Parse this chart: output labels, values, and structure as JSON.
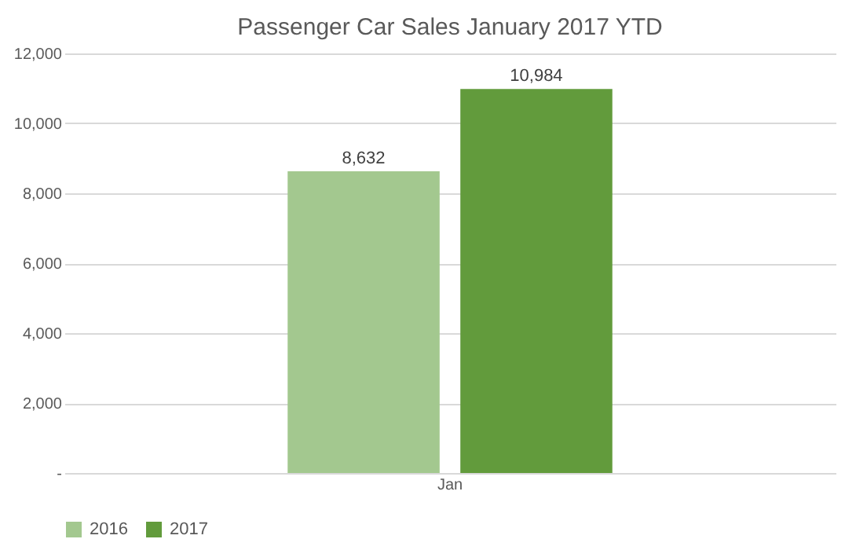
{
  "chart_data": {
    "type": "bar",
    "title": "Passenger Car Sales January 2017 YTD",
    "categories": [
      "Jan"
    ],
    "series": [
      {
        "name": "2016",
        "color": "#a3c88f",
        "values": [
          8632
        ],
        "value_labels": [
          "8,632"
        ]
      },
      {
        "name": "2017",
        "color": "#629b3c",
        "values": [
          10984
        ],
        "value_labels": [
          "10,984"
        ]
      }
    ],
    "ylim": [
      0,
      12000
    ],
    "yticks": [
      {
        "value": 0,
        "label": "-"
      },
      {
        "value": 2000,
        "label": "2,000"
      },
      {
        "value": 4000,
        "label": "4,000"
      },
      {
        "value": 6000,
        "label": "6,000"
      },
      {
        "value": 8000,
        "label": "8,000"
      },
      {
        "value": 10000,
        "label": "10,000"
      },
      {
        "value": 12000,
        "label": "12,000"
      }
    ],
    "grid": "y",
    "legend": "bottom"
  }
}
